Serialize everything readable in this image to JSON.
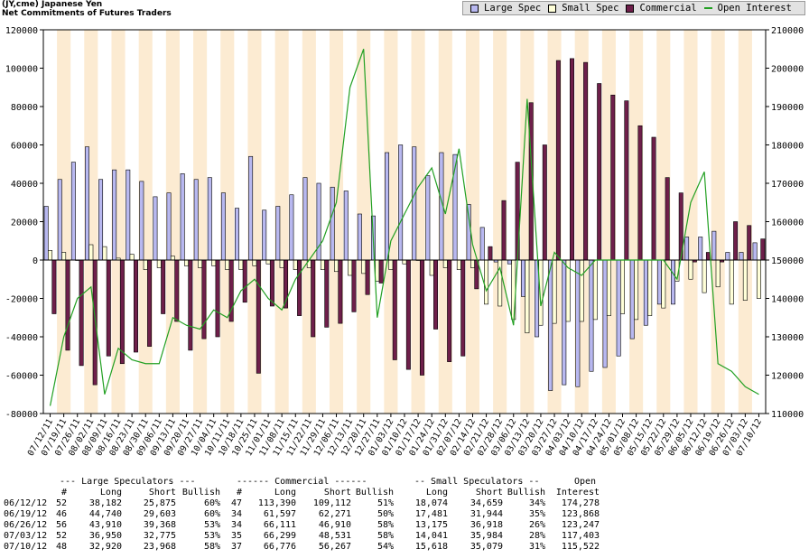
{
  "header": {
    "title": "(JY,cme) Japanese Yen",
    "subtitle": "Net Commitments of Futures Traders"
  },
  "legend": [
    {
      "label": "Large Spec",
      "color": "#b8b8f0",
      "kind": "bar"
    },
    {
      "label": "Small Spec",
      "color": "#ffffd8",
      "kind": "bar"
    },
    {
      "label": "Commercial",
      "color": "#6e1f4a",
      "kind": "bar"
    },
    {
      "label": "Open Interest",
      "color": "#22a022",
      "kind": "line"
    }
  ],
  "chart_data": {
    "type": "bar",
    "categories": [
      "07/12/11",
      "07/19/11",
      "07/26/11",
      "08/02/11",
      "08/09/11",
      "08/16/11",
      "08/23/11",
      "08/30/11",
      "09/06/11",
      "09/13/11",
      "09/20/11",
      "09/27/11",
      "10/04/11",
      "10/11/11",
      "10/18/11",
      "10/25/11",
      "11/01/11",
      "11/08/11",
      "11/15/11",
      "11/22/11",
      "11/29/11",
      "12/06/11",
      "12/13/11",
      "12/20/11",
      "12/27/11",
      "01/03/12",
      "01/10/12",
      "01/17/12",
      "01/24/12",
      "01/31/12",
      "02/07/12",
      "02/14/12",
      "02/21/12",
      "02/28/12",
      "03/06/12",
      "03/13/12",
      "03/20/12",
      "03/27/12",
      "04/03/12",
      "04/10/12",
      "04/17/12",
      "04/24/12",
      "05/01/12",
      "05/08/12",
      "05/15/12",
      "05/22/12",
      "05/29/12",
      "06/05/12",
      "06/12/12",
      "06/19/12",
      "06/26/12",
      "07/03/12",
      "07/10/12"
    ],
    "series": [
      {
        "name": "Large Spec",
        "color": "#b8b8f0",
        "values": [
          28000,
          42000,
          51000,
          59000,
          42000,
          47000,
          47000,
          41000,
          33000,
          35000,
          45000,
          42000,
          43000,
          35000,
          27000,
          54000,
          26000,
          28000,
          34000,
          43000,
          40000,
          38000,
          36000,
          24000,
          23000,
          56000,
          60000,
          59000,
          44000,
          56000,
          55000,
          29000,
          17000,
          -1000,
          -2000,
          -19000,
          -40000,
          -68000,
          -65000,
          -66000,
          -58000,
          -56000,
          -50000,
          -41000,
          -34000,
          -23000,
          -23000,
          12000,
          12000,
          15000,
          4000,
          4000,
          9000
        ]
      },
      {
        "name": "Small Spec",
        "color": "#ffffd8",
        "values": [
          5000,
          4000,
          0,
          8000,
          7000,
          1000,
          3000,
          -5000,
          -4000,
          2000,
          -3000,
          -4000,
          -3000,
          -5000,
          -5000,
          -3000,
          -2000,
          -4000,
          -5000,
          -4000,
          -5000,
          -6000,
          -8000,
          -7000,
          -11000,
          -5000,
          -2000,
          0,
          -8000,
          -4000,
          -5000,
          -4000,
          -23000,
          -24000,
          -31000,
          -38000,
          -34000,
          -33000,
          -32000,
          -32000,
          -31000,
          -29000,
          -28000,
          -31000,
          -29000,
          -25000,
          -11000,
          -10000,
          -17000,
          -14000,
          -23000,
          -21000,
          -20000
        ]
      },
      {
        "name": "Commercial",
        "color": "#6e1f4a",
        "values": [
          -28000,
          -47000,
          -55000,
          -65000,
          -50000,
          -54000,
          -48000,
          -45000,
          -28000,
          -32000,
          -47000,
          -41000,
          -40000,
          -32000,
          -22000,
          -59000,
          -24000,
          -25000,
          -29000,
          -40000,
          -35000,
          -33000,
          -27000,
          -18000,
          -12000,
          -52000,
          -57000,
          -60000,
          -36000,
          -53000,
          -50000,
          -15000,
          7000,
          31000,
          51000,
          82000,
          60000,
          104000,
          105000,
          103000,
          92000,
          86000,
          83000,
          70000,
          64000,
          43000,
          35000,
          -1000,
          4000,
          -1000,
          20000,
          18000,
          11000
        ]
      },
      {
        "name": "Open Interest",
        "color": "#22a022",
        "values": [
          112000,
          130000,
          140000,
          143000,
          115000,
          127000,
          124000,
          123000,
          123000,
          135000,
          133000,
          132000,
          137000,
          135000,
          142000,
          145000,
          140000,
          137000,
          145000,
          150000,
          155000,
          165000,
          195000,
          205000,
          135000,
          155000,
          162000,
          169000,
          174000,
          162000,
          179000,
          154000,
          142000,
          148000,
          133000,
          192000,
          138000,
          152000,
          148000,
          146000,
          150000,
          150000,
          150000,
          150000,
          150000,
          150000,
          145000,
          165000,
          173000,
          123000,
          121000,
          117000,
          115000
        ]
      }
    ],
    "ylim": [
      -80000,
      120000
    ],
    "y2lim": [
      110000,
      210000
    ],
    "yticks": [
      "120000",
      "100000",
      "80000",
      "60000",
      "40000",
      "20000",
      "0",
      "-20000",
      "-40000",
      "-60000",
      "-80000"
    ],
    "y2ticks": [
      "210000",
      "200000",
      "190000",
      "180000",
      "170000",
      "160000",
      "150000",
      "140000",
      "130000",
      "120000",
      "110000"
    ],
    "grid": "alternating vertical bands"
  },
  "table": {
    "group_headers": [
      "--- Large Speculators ---",
      "------ Commercial ------",
      "-- Small Speculators --",
      "Open"
    ],
    "col_headers": [
      "#",
      "Long",
      "Short",
      "Bullish",
      "#",
      "Long",
      "Short",
      "Bullish",
      "Long",
      "Short",
      "Bullish",
      "Interest"
    ],
    "rows": [
      [
        "06/12/12",
        "52",
        "38,182",
        "25,875",
        "60%",
        "47",
        "113,390",
        "109,112",
        "51%",
        "18,074",
        "34,659",
        "34%",
        "174,278"
      ],
      [
        "06/19/12",
        "46",
        "44,740",
        "29,603",
        "60%",
        "34",
        "61,597",
        "62,271",
        "50%",
        "17,481",
        "31,944",
        "35%",
        "123,868"
      ],
      [
        "06/26/12",
        "56",
        "43,910",
        "39,368",
        "53%",
        "34",
        "66,111",
        "46,910",
        "58%",
        "13,175",
        "36,918",
        "26%",
        "123,247"
      ],
      [
        "07/03/12",
        "52",
        "36,950",
        "32,775",
        "53%",
        "35",
        "66,299",
        "48,531",
        "58%",
        "14,041",
        "35,984",
        "28%",
        "117,403"
      ],
      [
        "07/10/12",
        "48",
        "32,920",
        "23,968",
        "58%",
        "37",
        "66,776",
        "56,267",
        "54%",
        "15,618",
        "35,079",
        "31%",
        "115,522"
      ]
    ]
  }
}
